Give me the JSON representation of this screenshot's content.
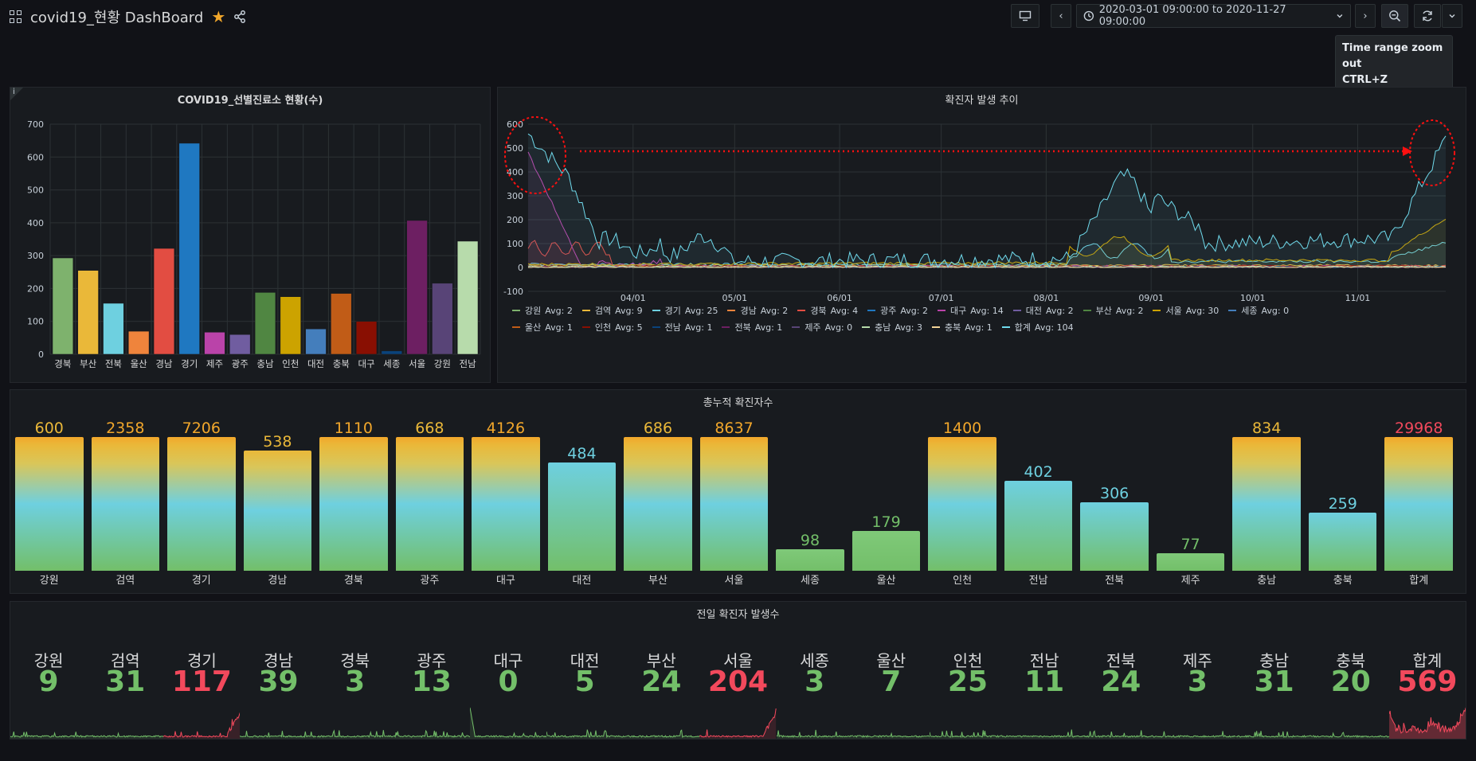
{
  "dashboard": {
    "title": "covid19_현황 DashBoard"
  },
  "toolbar": {
    "time_range": "2020-03-01 09:00:00 to 2020-11-27 09:00:00",
    "tooltip_title": "Time range zoom out",
    "tooltip_shortcut": "CTRL+Z"
  },
  "icons": [
    "grid-icon",
    "star-icon",
    "share-icon",
    "tv-icon",
    "chevron-left-icon",
    "clock-icon",
    "chevron-down-icon",
    "chevron-right-icon",
    "zoom-out-icon",
    "refresh-icon",
    "info-icon"
  ],
  "colors": {
    "background": "#111217",
    "panel": "#181b1f",
    "green": "#73bf69",
    "red": "#f2495c",
    "cyan": "#6ed0e0",
    "orange": "#f2a72b"
  },
  "panel1": {
    "title": "COVID19_선별진료소 현황(수)",
    "info": "i",
    "chart_data": {
      "type": "bar",
      "categories": [
        "경북",
        "부산",
        "전북",
        "울산",
        "경남",
        "경기",
        "제주",
        "광주",
        "충남",
        "인천",
        "대전",
        "충북",
        "대구",
        "세종",
        "서울",
        "강원",
        "전남"
      ],
      "values": [
        293,
        255,
        155,
        70,
        322,
        642,
        67,
        60,
        188,
        175,
        77,
        185,
        100,
        10,
        407,
        216,
        344
      ],
      "colors": [
        "#7eb26d",
        "#eab839",
        "#6ed0e0",
        "#ef843c",
        "#e24d42",
        "#1f78c1",
        "#ba43a9",
        "#705da0",
        "#508642",
        "#cca300",
        "#447ebc",
        "#c15c17",
        "#890f02",
        "#0a437c",
        "#6d1f62",
        "#584477",
        "#b7dbab"
      ],
      "ylim": [
        0,
        700
      ],
      "yticks": [
        0,
        100,
        200,
        300,
        400,
        500,
        600,
        700
      ]
    }
  },
  "panel2": {
    "title": "확진자 발생 추이",
    "chart_data": {
      "type": "line",
      "x_range": [
        "2020-03-01",
        "2020-11-27"
      ],
      "ylim": [
        -100,
        600
      ],
      "yticks": [
        600,
        500,
        400,
        300,
        200,
        100,
        0,
        -100
      ],
      "xticks": [
        "04/01",
        "05/01",
        "06/01",
        "07/01",
        "08/01",
        "09/01",
        "10/01",
        "11/01"
      ],
      "series": [
        {
          "name": "강원",
          "avg": "Avg: 2",
          "color": "#7eb26d"
        },
        {
          "name": "검역",
          "avg": "Avg: 9",
          "color": "#eab839"
        },
        {
          "name": "경기",
          "avg": "Avg: 25",
          "color": "#6ed0e0"
        },
        {
          "name": "경남",
          "avg": "Avg: 2",
          "color": "#ef843c"
        },
        {
          "name": "경북",
          "avg": "Avg: 4",
          "color": "#e24d42"
        },
        {
          "name": "광주",
          "avg": "Avg: 2",
          "color": "#1f78c1"
        },
        {
          "name": "대구",
          "avg": "Avg: 14",
          "color": "#ba43a9"
        },
        {
          "name": "대전",
          "avg": "Avg: 2",
          "color": "#705da0"
        },
        {
          "name": "부산",
          "avg": "Avg: 2",
          "color": "#508642"
        },
        {
          "name": "서울",
          "avg": "Avg: 30",
          "color": "#cca300"
        },
        {
          "name": "세종",
          "avg": "Avg: 0",
          "color": "#447ebc"
        },
        {
          "name": "울산",
          "avg": "Avg: 1",
          "color": "#c15c17"
        },
        {
          "name": "인천",
          "avg": "Avg: 5",
          "color": "#890f02"
        },
        {
          "name": "전남",
          "avg": "Avg: 1",
          "color": "#0a437c"
        },
        {
          "name": "전북",
          "avg": "Avg: 1",
          "color": "#6d1f62"
        },
        {
          "name": "제주",
          "avg": "Avg: 0",
          "color": "#584477"
        },
        {
          "name": "충남",
          "avg": "Avg: 3",
          "color": "#b7dbab"
        },
        {
          "name": "충북",
          "avg": "Avg: 1",
          "color": "#f4d598"
        },
        {
          "name": "합계",
          "avg": "Avg: 104",
          "color": "#70dbed"
        }
      ]
    }
  },
  "panel3": {
    "title": "총누적 확진자수",
    "items": [
      {
        "name": "강원",
        "value": 600
      },
      {
        "name": "검역",
        "value": 2358
      },
      {
        "name": "경기",
        "value": 7206
      },
      {
        "name": "경남",
        "value": 538
      },
      {
        "name": "경북",
        "value": 1110
      },
      {
        "name": "광주",
        "value": 668
      },
      {
        "name": "대구",
        "value": 4126
      },
      {
        "name": "대전",
        "value": 484
      },
      {
        "name": "부산",
        "value": 686
      },
      {
        "name": "서울",
        "value": 8637
      },
      {
        "name": "세종",
        "value": 98
      },
      {
        "name": "울산",
        "value": 179
      },
      {
        "name": "인천",
        "value": 1400
      },
      {
        "name": "전남",
        "value": 402
      },
      {
        "name": "전북",
        "value": 306
      },
      {
        "name": "제주",
        "value": 77
      },
      {
        "name": "충남",
        "value": 834
      },
      {
        "name": "충북",
        "value": 259
      },
      {
        "name": "합계",
        "value": 29968
      }
    ]
  },
  "panel4": {
    "title": "전일 확진자 발생수",
    "items": [
      {
        "name": "강원",
        "value": 9,
        "color": "#73bf69"
      },
      {
        "name": "검역",
        "value": 31,
        "color": "#73bf69"
      },
      {
        "name": "경기",
        "value": 117,
        "color": "#f2495c"
      },
      {
        "name": "경남",
        "value": 39,
        "color": "#73bf69"
      },
      {
        "name": "경북",
        "value": 3,
        "color": "#73bf69"
      },
      {
        "name": "광주",
        "value": 13,
        "color": "#73bf69"
      },
      {
        "name": "대구",
        "value": 0,
        "color": "#73bf69"
      },
      {
        "name": "대전",
        "value": 5,
        "color": "#73bf69"
      },
      {
        "name": "부산",
        "value": 24,
        "color": "#73bf69"
      },
      {
        "name": "서울",
        "value": 204,
        "color": "#f2495c"
      },
      {
        "name": "세종",
        "value": 3,
        "color": "#73bf69"
      },
      {
        "name": "울산",
        "value": 7,
        "color": "#73bf69"
      },
      {
        "name": "인천",
        "value": 25,
        "color": "#73bf69"
      },
      {
        "name": "전남",
        "value": 11,
        "color": "#73bf69"
      },
      {
        "name": "전북",
        "value": 24,
        "color": "#73bf69"
      },
      {
        "name": "제주",
        "value": 3,
        "color": "#73bf69"
      },
      {
        "name": "충남",
        "value": 31,
        "color": "#73bf69"
      },
      {
        "name": "충북",
        "value": 20,
        "color": "#73bf69"
      },
      {
        "name": "합계",
        "value": 569,
        "color": "#f2495c"
      }
    ]
  }
}
